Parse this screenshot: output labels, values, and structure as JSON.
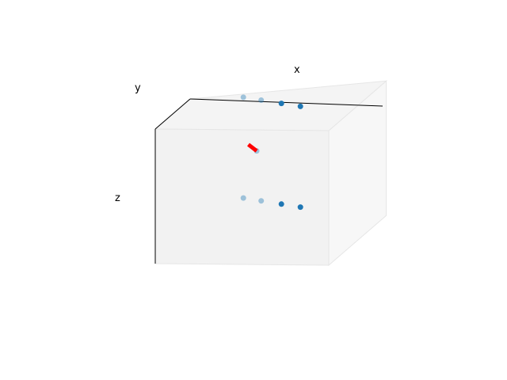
{
  "chart_data": {
    "type": "scatter",
    "dimensions": "3d",
    "title": "",
    "xlabel": "x",
    "ylabel": "y",
    "zlabel": "z",
    "series": [
      {
        "color": "#1f77b4",
        "points": [
          {
            "x": 0.2,
            "y": 0.55,
            "z": 1.0
          },
          {
            "x": 0.35,
            "y": 0.55,
            "z": 1.0
          },
          {
            "x": 0.52,
            "y": 0.55,
            "z": 1.0
          },
          {
            "x": 0.68,
            "y": 0.55,
            "z": 1.0
          },
          {
            "x": 0.4,
            "y": 0.0,
            "z": 0.75
          },
          {
            "x": 0.2,
            "y": 0.55,
            "z": 0.4
          },
          {
            "x": 0.35,
            "y": 0.55,
            "z": 0.4
          },
          {
            "x": 0.52,
            "y": 0.55,
            "z": 0.4
          },
          {
            "x": 0.68,
            "y": 0.55,
            "z": 0.4
          }
        ]
      }
    ],
    "highlight_segment": {
      "color": "#ff0000",
      "from": {
        "x": 0.33,
        "y": 0.0,
        "z": 0.78
      },
      "to": {
        "x": 0.4,
        "y": 0.0,
        "z": 0.75
      }
    },
    "grid": false,
    "pane_colors": {
      "front": "#f2f2f2",
      "side": "#f7f7f7",
      "top": "#f4f4f4",
      "edge": "#e6e6e6",
      "axis_line": "#000000"
    }
  }
}
